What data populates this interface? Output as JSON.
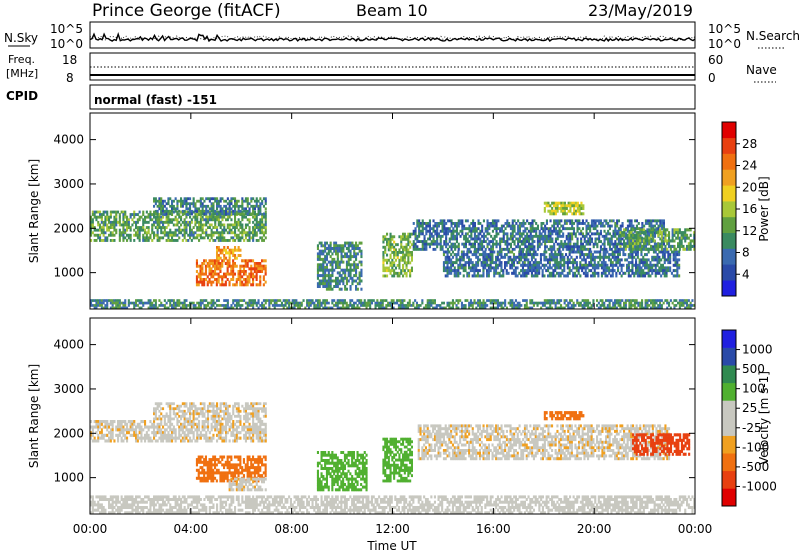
{
  "header": {
    "title": "Prince George (fitACF)",
    "beam": "Beam 10",
    "date": "23/May/2019"
  },
  "top_panels": {
    "nsky_label": "N.Sky",
    "nsearch_label": "N.Search",
    "left_ticks_top": "10^5",
    "left_ticks_bottom": "10^0",
    "right_ticks_top": "10^5",
    "right_ticks_bottom": "10^0",
    "freq_label": "Freq.",
    "freq_unit": "[MHz]",
    "freq_ticks": [
      "18",
      "8"
    ],
    "nave_label": "Nave",
    "nave_ticks": [
      "60",
      "0"
    ],
    "cpid_label": "CPID",
    "cpid_value": "normal (fast) -151"
  },
  "colors": {
    "power": [
      "#2020e0",
      "#2a4aa8",
      "#3a6ab0",
      "#3a8a60",
      "#60a040",
      "#a8c838",
      "#f0d020",
      "#f0a020",
      "#f07010",
      "#e84010",
      "#e00000"
    ],
    "velocity": [
      "#e00000",
      "#e84010",
      "#f07010",
      "#f0a020",
      "#c8c8c0",
      "#c8c8c0",
      "#50b030",
      "#308a50",
      "#2a4aa8",
      "#2020e0"
    ]
  },
  "chart_data": [
    {
      "type": "heatmap",
      "panel": "power",
      "ylabel": "Slant Range [km]",
      "ylim": [
        180,
        4600
      ],
      "yticks": [
        "4000",
        "3000",
        "2000",
        "1000"
      ],
      "xticks": [
        "00:00",
        "04:00",
        "08:00",
        "12:00",
        "16:00",
        "20:00",
        "00:00"
      ],
      "colorbar_label": "Power [dB]",
      "colorbar_ticks": [
        "28",
        "24",
        "20",
        "16",
        "12",
        "8",
        "4"
      ],
      "colorbar_range": [
        0,
        32
      ],
      "regions": [
        {
          "t0": 0.0,
          "t1": 7.0,
          "r0": 1700,
          "r1": 2400,
          "value": 12
        },
        {
          "t0": 2.5,
          "t1": 7.0,
          "r0": 2300,
          "r1": 2700,
          "value": 9
        },
        {
          "t0": 4.2,
          "t1": 7.0,
          "r0": 700,
          "r1": 1300,
          "value": 25
        },
        {
          "t0": 5.0,
          "t1": 6.0,
          "r0": 1300,
          "r1": 1600,
          "value": 22
        },
        {
          "t0": 9.0,
          "t1": 10.8,
          "r0": 600,
          "r1": 1700,
          "value": 10
        },
        {
          "t0": 11.6,
          "t1": 12.8,
          "r0": 900,
          "r1": 1900,
          "value": 14
        },
        {
          "t0": 12.8,
          "t1": 22.8,
          "r0": 1500,
          "r1": 2200,
          "value": 8
        },
        {
          "t0": 14.0,
          "t1": 23.4,
          "r0": 900,
          "r1": 1500,
          "value": 8
        },
        {
          "t0": 18.0,
          "t1": 19.6,
          "r0": 2300,
          "r1": 2600,
          "value": 16
        },
        {
          "t0": 21.0,
          "t1": 24.0,
          "r0": 1500,
          "r1": 2000,
          "value": 12
        },
        {
          "t0": 0.0,
          "t1": 24.0,
          "r0": 180,
          "r1": 400,
          "value": 10
        }
      ]
    },
    {
      "type": "heatmap",
      "panel": "velocity",
      "ylabel": "Slant Range [km]",
      "ylim": [
        180,
        4600
      ],
      "yticks": [
        "4000",
        "3000",
        "2000",
        "1000"
      ],
      "xticks": [
        "00:00",
        "04:00",
        "08:00",
        "12:00",
        "16:00",
        "20:00",
        "00:00"
      ],
      "xlabel": "Time UT",
      "colorbar_label": "Velocity [m s-1]",
      "colorbar_ticks": [
        "1000",
        "500",
        "100",
        "25",
        "-25",
        "-100",
        "-500",
        "-1000"
      ],
      "regions": [
        {
          "t0": 0.0,
          "t1": 7.0,
          "r0": 1800,
          "r1": 2300,
          "value": 0
        },
        {
          "t0": 2.5,
          "t1": 7.0,
          "r0": 2300,
          "r1": 2700,
          "value": 0
        },
        {
          "t0": 4.2,
          "t1": 7.0,
          "r0": 900,
          "r1": 1500,
          "value": -300
        },
        {
          "t0": 5.5,
          "t1": 7.0,
          "r0": 700,
          "r1": 1000,
          "value": 0
        },
        {
          "t0": 9.0,
          "t1": 11.0,
          "r0": 700,
          "r1": 1600,
          "value": 150
        },
        {
          "t0": 11.6,
          "t1": 12.8,
          "r0": 900,
          "r1": 1900,
          "value": 150
        },
        {
          "t0": 13.0,
          "t1": 23.0,
          "r0": 1400,
          "r1": 2200,
          "value": 0
        },
        {
          "t0": 18.0,
          "t1": 19.6,
          "r0": 2300,
          "r1": 2500,
          "value": -300
        },
        {
          "t0": 21.5,
          "t1": 23.8,
          "r0": 1500,
          "r1": 2000,
          "value": -600
        },
        {
          "t0": 0.0,
          "t1": 24.0,
          "r0": 180,
          "r1": 600,
          "value": 50
        }
      ]
    }
  ]
}
